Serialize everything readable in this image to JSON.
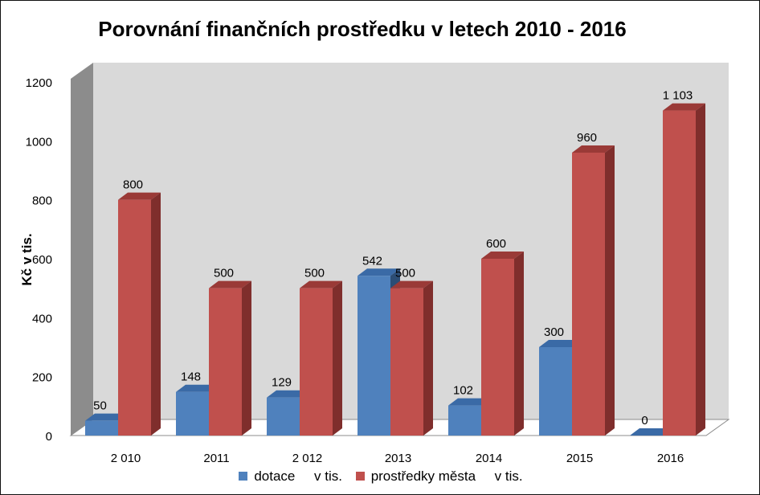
{
  "chart_data": {
    "type": "bar",
    "title": "Porovnání finančních prostředku v letech 2010 - 2016",
    "xlabel": "",
    "ylabel": "Kč v tis.",
    "ylim": [
      0,
      1200
    ],
    "yticks": [
      "0",
      "200",
      "400",
      "600",
      "800",
      "1000",
      "1200"
    ],
    "ytick_values": [
      0,
      200,
      400,
      600,
      800,
      1000,
      1200
    ],
    "categories": [
      "2 010",
      "2011",
      "2 012",
      "2013",
      "2014",
      "2015",
      "2016"
    ],
    "series": [
      {
        "name": "dotace     v tis.",
        "values": [
          50,
          148,
          129,
          542,
          102,
          300,
          0
        ],
        "labels": [
          "50",
          "148",
          "129",
          "542",
          "102",
          "300",
          "0"
        ],
        "color": "#4F81BD",
        "side_color": "#2C4D75",
        "top_color": "#3A6AA6"
      },
      {
        "name": "prostředky města     v tis.",
        "values": [
          800,
          500,
          500,
          500,
          600,
          960,
          1103
        ],
        "labels": [
          "800",
          "500",
          "500",
          "500",
          "600",
          "960",
          "1 103"
        ],
        "color": "#C0504D",
        "side_color": "#7F2E2C",
        "top_color": "#9A3A37"
      }
    ],
    "grid": false,
    "legend": "bottom",
    "style": "3d-clustered-column",
    "wall_color": "#D9D9D9",
    "side_wall_color": "#8C8C8C"
  }
}
